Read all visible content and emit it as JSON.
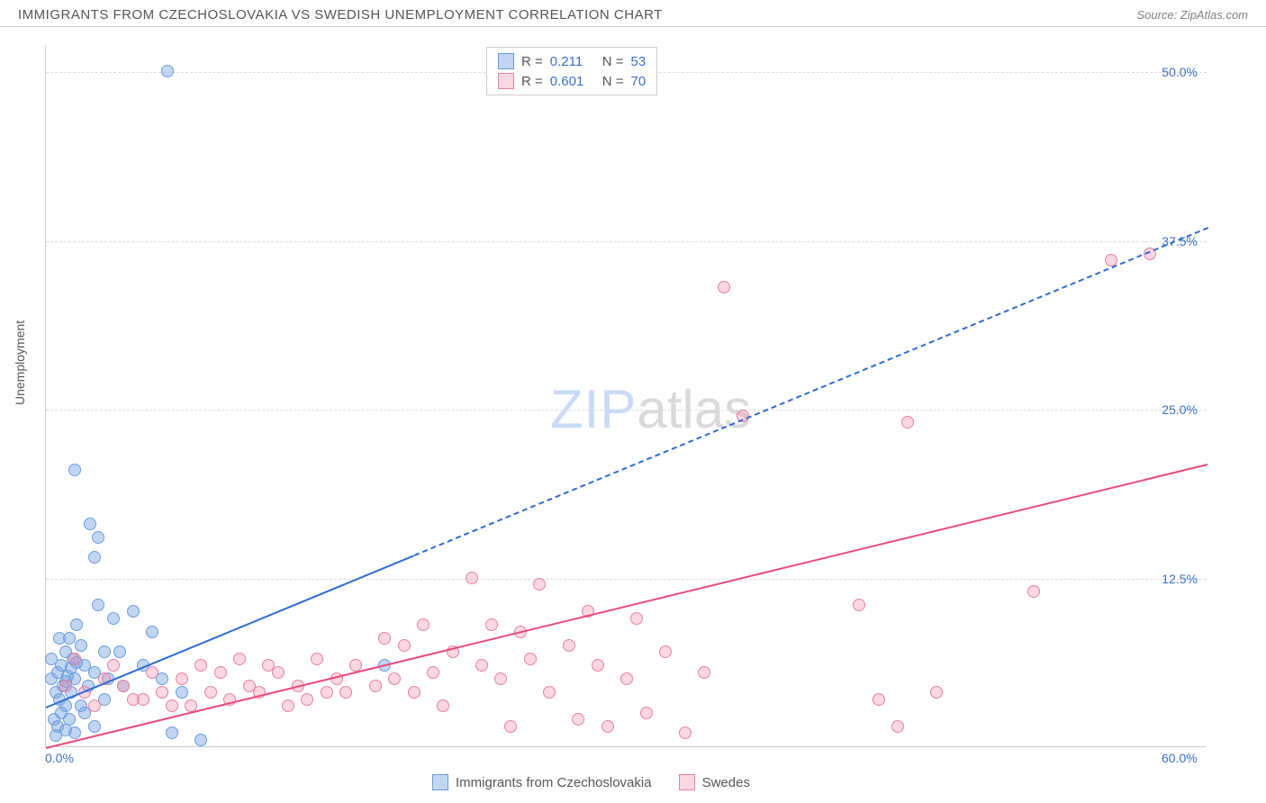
{
  "title": "IMMIGRANTS FROM CZECHOSLOVAKIA VS SWEDISH UNEMPLOYMENT CORRELATION CHART",
  "source": "Source: ZipAtlas.com",
  "watermark_zip": "ZIP",
  "watermark_atlas": "atlas",
  "chart": {
    "type": "scatter",
    "ylabel": "Unemployment",
    "background_color": "#ffffff",
    "grid_color": "#dddddd",
    "axis_color": "#cccccc",
    "text_color": "#555555",
    "value_color": "#3b6fc9",
    "xlim": [
      0,
      60
    ],
    "ylim": [
      0,
      52
    ],
    "xticks": [
      {
        "v": 0,
        "label": "0.0%"
      },
      {
        "v": 60,
        "label": "60.0%"
      }
    ],
    "yticks": [
      {
        "v": 12.5,
        "label": "12.5%"
      },
      {
        "v": 25.0,
        "label": "25.0%"
      },
      {
        "v": 37.5,
        "label": "37.5%"
      },
      {
        "v": 50.0,
        "label": "50.0%"
      }
    ],
    "series": [
      {
        "name": "Immigrants from Czechoslovakia",
        "key": "blue",
        "R": "0.211",
        "N": "53",
        "fill": "rgba(120,165,225,0.45)",
        "stroke": "#6a9be0",
        "line_color": "#2e6bd6",
        "trend": {
          "x1": 0,
          "y1": 3.0,
          "x2": 60,
          "y2": 38.5,
          "solid_until_x": 19
        },
        "points": [
          [
            0.3,
            5.0
          ],
          [
            0.5,
            4.0
          ],
          [
            0.6,
            5.5
          ],
          [
            0.7,
            3.5
          ],
          [
            0.8,
            6.0
          ],
          [
            0.9,
            4.5
          ],
          [
            1.0,
            7.0
          ],
          [
            1.1,
            5.2
          ],
          [
            1.2,
            8.0
          ],
          [
            1.3,
            4.0
          ],
          [
            1.4,
            6.5
          ],
          [
            1.5,
            5.0
          ],
          [
            1.6,
            9.0
          ],
          [
            1.8,
            7.5
          ],
          [
            2.0,
            6.0
          ],
          [
            2.2,
            4.5
          ],
          [
            2.5,
            5.5
          ],
          [
            2.7,
            10.5
          ],
          [
            3.0,
            7.0
          ],
          [
            3.2,
            5.0
          ],
          [
            3.5,
            9.5
          ],
          [
            1.0,
            3.0
          ],
          [
            0.4,
            2.0
          ],
          [
            0.6,
            1.5
          ],
          [
            0.8,
            2.5
          ],
          [
            1.2,
            2.0
          ],
          [
            1.5,
            1.0
          ],
          [
            1.8,
            3.0
          ],
          [
            2.0,
            2.5
          ],
          [
            2.5,
            1.5
          ],
          [
            3.0,
            3.5
          ],
          [
            0.5,
            0.8
          ],
          [
            1.0,
            1.2
          ],
          [
            2.5,
            14.0
          ],
          [
            2.7,
            15.5
          ],
          [
            2.3,
            16.5
          ],
          [
            1.5,
            20.5
          ],
          [
            6.3,
            50.0
          ],
          [
            4.5,
            10.0
          ],
          [
            5.0,
            6.0
          ],
          [
            5.5,
            8.5
          ],
          [
            6.0,
            5.0
          ],
          [
            4.0,
            4.5
          ],
          [
            3.8,
            7.0
          ],
          [
            7.0,
            4.0
          ],
          [
            0.3,
            6.5
          ],
          [
            0.7,
            8.0
          ],
          [
            1.0,
            4.8
          ],
          [
            1.3,
            5.8
          ],
          [
            1.6,
            6.2
          ],
          [
            17.5,
            6.0
          ],
          [
            8.0,
            0.5
          ],
          [
            6.5,
            1.0
          ]
        ]
      },
      {
        "name": "Swedes",
        "key": "pink",
        "R": "0.601",
        "N": "70",
        "fill": "rgba(240,140,170,0.35)",
        "stroke": "#e87fa3",
        "line_color": "#e84a7a",
        "trend": {
          "x1": 0,
          "y1": 0.0,
          "x2": 60,
          "y2": 21.0,
          "solid_until_x": 60
        },
        "points": [
          [
            1.0,
            4.5
          ],
          [
            2.0,
            4.0
          ],
          [
            3.0,
            5.0
          ],
          [
            4.0,
            4.5
          ],
          [
            5.0,
            3.5
          ],
          [
            5.5,
            5.5
          ],
          [
            6.0,
            4.0
          ],
          [
            7.0,
            5.0
          ],
          [
            7.5,
            3.0
          ],
          [
            8.0,
            6.0
          ],
          [
            8.5,
            4.0
          ],
          [
            9.0,
            5.5
          ],
          [
            9.5,
            3.5
          ],
          [
            10.0,
            6.5
          ],
          [
            10.5,
            4.5
          ],
          [
            11.0,
            4.0
          ],
          [
            12.0,
            5.5
          ],
          [
            12.5,
            3.0
          ],
          [
            13.0,
            4.5
          ],
          [
            14.0,
            6.5
          ],
          [
            14.5,
            4.0
          ],
          [
            15.0,
            5.0
          ],
          [
            16.0,
            6.0
          ],
          [
            17.0,
            4.5
          ],
          [
            17.5,
            8.0
          ],
          [
            18.0,
            5.0
          ],
          [
            18.5,
            7.5
          ],
          [
            19.0,
            4.0
          ],
          [
            19.5,
            9.0
          ],
          [
            20.0,
            5.5
          ],
          [
            20.5,
            3.0
          ],
          [
            21.0,
            7.0
          ],
          [
            22.0,
            12.5
          ],
          [
            22.5,
            6.0
          ],
          [
            23.0,
            9.0
          ],
          [
            23.5,
            5.0
          ],
          [
            24.0,
            1.5
          ],
          [
            24.5,
            8.5
          ],
          [
            25.0,
            6.5
          ],
          [
            25.5,
            12.0
          ],
          [
            26.0,
            4.0
          ],
          [
            27.0,
            7.5
          ],
          [
            27.5,
            2.0
          ],
          [
            28.0,
            10.0
          ],
          [
            28.5,
            6.0
          ],
          [
            29.0,
            1.5
          ],
          [
            30.0,
            5.0
          ],
          [
            30.5,
            9.5
          ],
          [
            31.0,
            2.5
          ],
          [
            32.0,
            7.0
          ],
          [
            33.0,
            1.0
          ],
          [
            34.0,
            5.5
          ],
          [
            35.0,
            34.0
          ],
          [
            36.0,
            24.5
          ],
          [
            42.0,
            10.5
          ],
          [
            43.0,
            3.5
          ],
          [
            44.0,
            1.5
          ],
          [
            44.5,
            24.0
          ],
          [
            46.0,
            4.0
          ],
          [
            51.0,
            11.5
          ],
          [
            55.0,
            36.0
          ],
          [
            57.0,
            36.5
          ],
          [
            1.5,
            6.5
          ],
          [
            2.5,
            3.0
          ],
          [
            3.5,
            6.0
          ],
          [
            4.5,
            3.5
          ],
          [
            6.5,
            3.0
          ],
          [
            11.5,
            6.0
          ],
          [
            13.5,
            3.5
          ],
          [
            15.5,
            4.0
          ]
        ]
      }
    ],
    "legend_top": {
      "R_label": "R =",
      "N_label": "N ="
    }
  }
}
